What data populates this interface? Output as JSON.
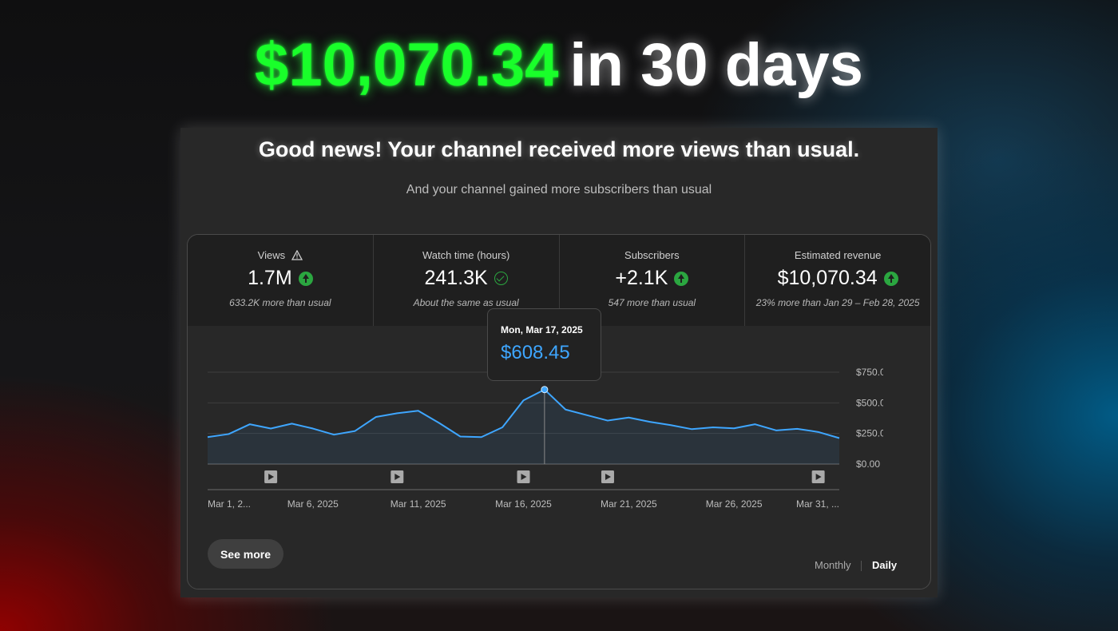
{
  "headline": {
    "amount": "$10,070.34",
    "rest": "in 30 days"
  },
  "card": {
    "title": "Good news! Your channel received more views than usual.",
    "subtitle": "And your channel gained more subscribers than usual"
  },
  "metrics": [
    {
      "label": "Views",
      "value": "1.7M",
      "note": "633.2K more than usual",
      "icon": "arrow-up-icon"
    },
    {
      "label": "Watch time (hours)",
      "value": "241.3K",
      "note": "About the same as usual",
      "icon": "check-circle-icon"
    },
    {
      "label": "Subscribers",
      "value": "+2.1K",
      "note": "547 more than usual",
      "icon": "arrow-up-icon"
    },
    {
      "label": "Estimated revenue",
      "value": "$10,070.34",
      "note": "23% more than Jan 29 – Feb 28, 2025",
      "icon": "arrow-up-icon"
    }
  ],
  "tooltip": {
    "date": "Mon, Mar 17, 2025",
    "value": "$608.45"
  },
  "chart_data": {
    "type": "area",
    "x": [
      "Mar 1",
      "Mar 2",
      "Mar 3",
      "Mar 4",
      "Mar 5",
      "Mar 6",
      "Mar 7",
      "Mar 8",
      "Mar 9",
      "Mar 10",
      "Mar 11",
      "Mar 12",
      "Mar 13",
      "Mar 14",
      "Mar 15",
      "Mar 16",
      "Mar 17",
      "Mar 18",
      "Mar 19",
      "Mar 20",
      "Mar 21",
      "Mar 22",
      "Mar 23",
      "Mar 24",
      "Mar 25",
      "Mar 26",
      "Mar 27",
      "Mar 28",
      "Mar 29",
      "Mar 30",
      "Mar 31"
    ],
    "values": [
      220,
      245,
      325,
      290,
      330,
      290,
      240,
      270,
      385,
      415,
      435,
      335,
      225,
      220,
      300,
      520,
      608.45,
      445,
      400,
      355,
      380,
      345,
      318,
      285,
      300,
      292,
      325,
      275,
      288,
      262,
      212
    ],
    "ylim": [
      0,
      750
    ],
    "y_ticks": [
      "$750.00",
      "$500.00",
      "$250.00",
      "$0.00"
    ],
    "x_tick_labels": [
      "Mar 1, 2...",
      "Mar 6, 2025",
      "Mar 11, 2025",
      "Mar 16, 2025",
      "Mar 21, 2025",
      "Mar 26, 2025",
      "Mar 31, ..."
    ],
    "highlight_index": 16,
    "video_markers_days": [
      3,
      9,
      15,
      19,
      29
    ],
    "line_color": "#3ea6ff",
    "grid": true
  },
  "buttons": {
    "see_more": "See more"
  },
  "toggle": {
    "monthly": "Monthly",
    "daily": "Daily"
  },
  "colors": {
    "accent_green": "#19ff2a",
    "revenue_blue": "#3ea6ff",
    "up_green": "#2ba640"
  }
}
